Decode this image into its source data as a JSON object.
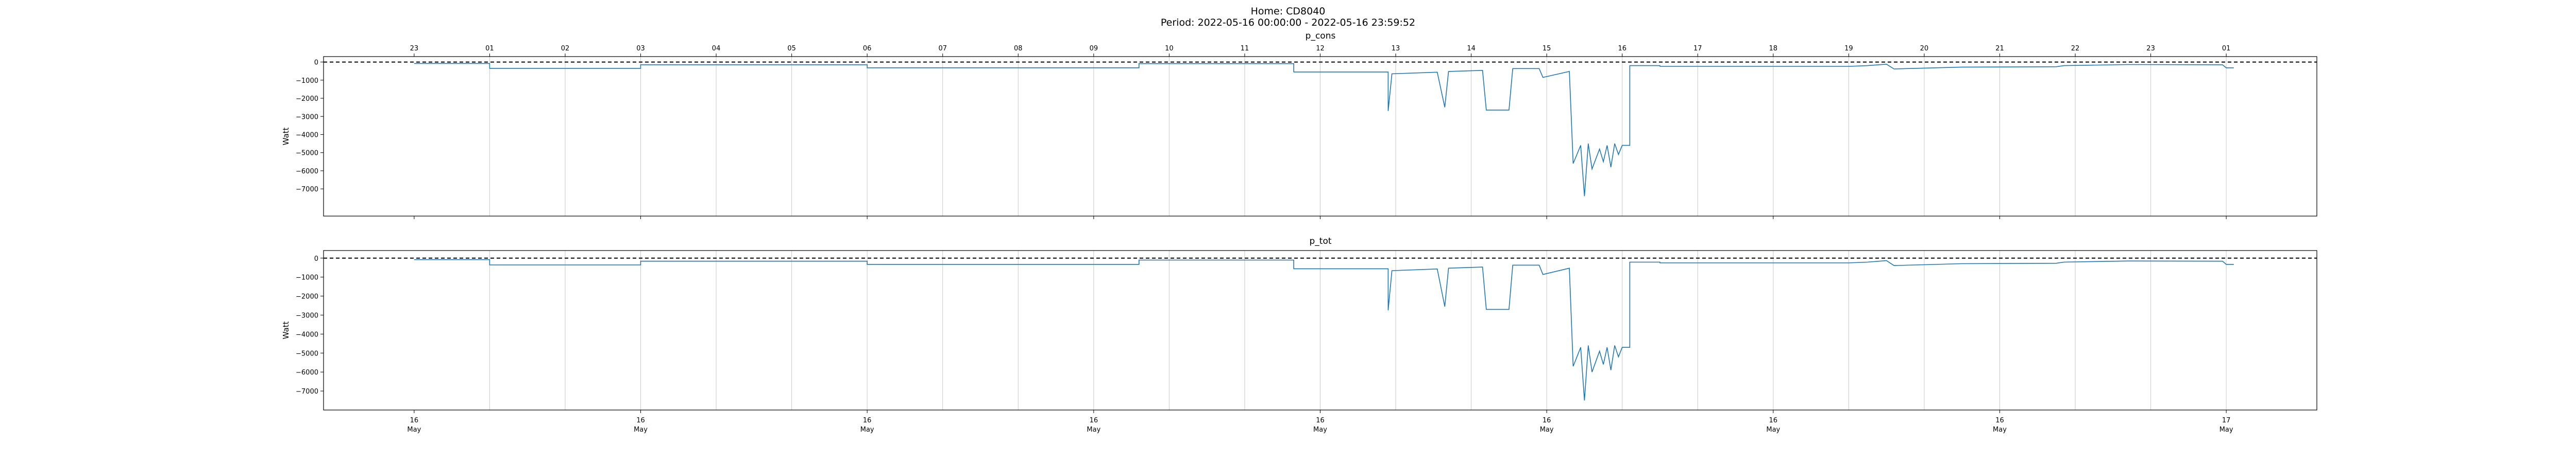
{
  "figure": {
    "title": "Home: CD8040",
    "subtitle": "Period: 2022-05-16 00:00:00 - 2022-05-16 23:59:52"
  },
  "chart_data": [
    {
      "type": "line",
      "title": "p_cons",
      "xlabel": "",
      "ylabel": "Watt",
      "xlim_hours": [
        -2.4,
        50.4
      ],
      "ylim": [
        -8500,
        300
      ],
      "yticks": [
        0,
        -1000,
        -2000,
        -3000,
        -4000,
        -5000,
        -6000,
        -7000
      ],
      "top_hour_ticks": [
        "23",
        "01",
        "02",
        "03",
        "04",
        "05",
        "06",
        "07",
        "08",
        "09",
        "10",
        "11",
        "12",
        "13",
        "14",
        "15",
        "16",
        "17",
        "18",
        "19",
        "20",
        "21",
        "22",
        "23",
        "01"
      ],
      "bottom_date_ticks": [
        [
          "16",
          "May"
        ],
        [
          "16",
          "May"
        ],
        [
          "16",
          "May"
        ],
        [
          "16",
          "May"
        ],
        [
          "16",
          "May"
        ],
        [
          "16",
          "May"
        ],
        [
          "16",
          "May"
        ],
        [
          "16",
          "May"
        ],
        [
          "17",
          "May"
        ]
      ],
      "reference_line": 0,
      "grid": "vertical hourly",
      "series": [
        {
          "color": "#1f77b4",
          "points": [
            [
              0,
              -80
            ],
            [
              2,
              -80
            ],
            [
              2,
              -350
            ],
            [
              6,
              -350
            ],
            [
              6,
              -150
            ],
            [
              12,
              -150
            ],
            [
              12,
              -320
            ],
            [
              19.2,
              -320
            ],
            [
              19.2,
              -90
            ],
            [
              23.3,
              -90
            ],
            [
              23.3,
              -550
            ],
            [
              25.8,
              -550
            ],
            [
              25.8,
              -2700
            ],
            [
              25.9,
              -650
            ],
            [
              27.1,
              -560
            ],
            [
              27.3,
              -2500
            ],
            [
              27.4,
              -520
            ],
            [
              28.3,
              -460
            ],
            [
              28.4,
              -2650
            ],
            [
              29.0,
              -2650
            ],
            [
              29.1,
              -360
            ],
            [
              29.8,
              -360
            ],
            [
              29.9,
              -850
            ],
            [
              30.6,
              -520
            ],
            [
              30.7,
              -5600
            ],
            [
              30.9,
              -4600
            ],
            [
              31.0,
              -7400
            ],
            [
              31.1,
              -4500
            ],
            [
              31.2,
              -5900
            ],
            [
              31.4,
              -4800
            ],
            [
              31.5,
              -5500
            ],
            [
              31.6,
              -4600
            ],
            [
              31.7,
              -5800
            ],
            [
              31.8,
              -4500
            ],
            [
              31.9,
              -5100
            ],
            [
              32.0,
              -4600
            ],
            [
              32.2,
              -4600
            ],
            [
              32.2,
              -200
            ],
            [
              33.0,
              -200
            ],
            [
              33.0,
              -240
            ],
            [
              38.0,
              -240
            ],
            [
              38.5,
              -200
            ],
            [
              39.0,
              -120
            ],
            [
              39.2,
              -380
            ],
            [
              41.0,
              -280
            ],
            [
              43.5,
              -260
            ],
            [
              43.7,
              -200
            ],
            [
              45.4,
              -140
            ],
            [
              47.9,
              -150
            ],
            [
              48.0,
              -320
            ],
            [
              48.2,
              -320
            ]
          ]
        }
      ]
    },
    {
      "type": "line",
      "title": "p_tot",
      "xlabel": "",
      "ylabel": "Watt",
      "xlim_hours": [
        -2.4,
        50.4
      ],
      "ylim": [
        -8000,
        400
      ],
      "yticks": [
        0,
        -1000,
        -2000,
        -3000,
        -4000,
        -5000,
        -6000,
        -7000
      ],
      "bottom_date_ticks": [
        [
          "16",
          "May"
        ],
        [
          "16",
          "May"
        ],
        [
          "16",
          "May"
        ],
        [
          "16",
          "May"
        ],
        [
          "16",
          "May"
        ],
        [
          "16",
          "May"
        ],
        [
          "16",
          "May"
        ],
        [
          "16",
          "May"
        ],
        [
          "17",
          "May"
        ]
      ],
      "reference_line": 0,
      "grid": "vertical hourly",
      "series": [
        {
          "color": "#1f77b4",
          "points": [
            [
              0,
              -80
            ],
            [
              2,
              -80
            ],
            [
              2,
              -360
            ],
            [
              6,
              -360
            ],
            [
              6,
              -160
            ],
            [
              12,
              -160
            ],
            [
              12,
              -330
            ],
            [
              19.2,
              -330
            ],
            [
              19.2,
              -100
            ],
            [
              23.3,
              -100
            ],
            [
              23.3,
              -560
            ],
            [
              25.8,
              -560
            ],
            [
              25.8,
              -2750
            ],
            [
              25.9,
              -660
            ],
            [
              27.1,
              -570
            ],
            [
              27.3,
              -2550
            ],
            [
              27.4,
              -530
            ],
            [
              28.3,
              -470
            ],
            [
              28.4,
              -2700
            ],
            [
              29.0,
              -2700
            ],
            [
              29.1,
              -370
            ],
            [
              29.8,
              -370
            ],
            [
              29.9,
              -860
            ],
            [
              30.6,
              -530
            ],
            [
              30.7,
              -5700
            ],
            [
              30.9,
              -4700
            ],
            [
              31.0,
              -7500
            ],
            [
              31.1,
              -4600
            ],
            [
              31.2,
              -6000
            ],
            [
              31.4,
              -4900
            ],
            [
              31.5,
              -5600
            ],
            [
              31.6,
              -4700
            ],
            [
              31.7,
              -5900
            ],
            [
              31.8,
              -4600
            ],
            [
              31.9,
              -5200
            ],
            [
              32.0,
              -4700
            ],
            [
              32.2,
              -4700
            ],
            [
              32.2,
              -210
            ],
            [
              33.0,
              -210
            ],
            [
              33.0,
              -250
            ],
            [
              38.0,
              -250
            ],
            [
              38.5,
              -210
            ],
            [
              39.0,
              -130
            ],
            [
              39.2,
              -390
            ],
            [
              41.0,
              -290
            ],
            [
              43.5,
              -270
            ],
            [
              43.7,
              -210
            ],
            [
              45.4,
              -150
            ],
            [
              47.9,
              -160
            ],
            [
              48.0,
              -330
            ],
            [
              48.2,
              -330
            ]
          ]
        }
      ]
    }
  ]
}
